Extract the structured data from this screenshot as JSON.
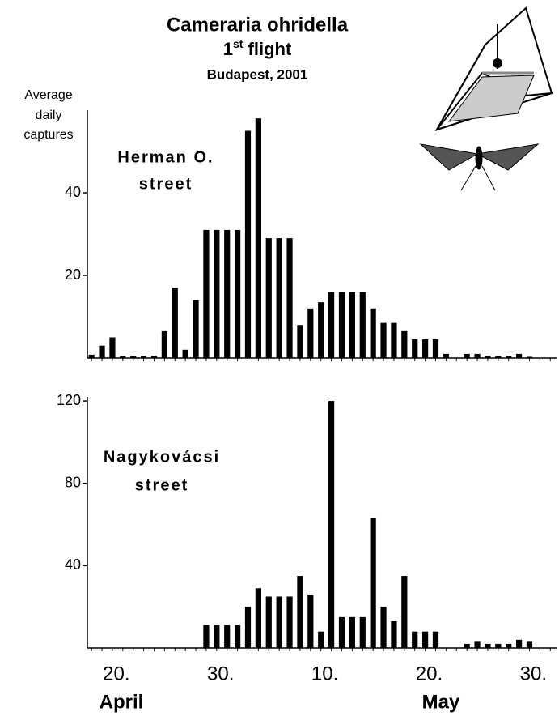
{
  "chart_data": [
    {
      "type": "bar",
      "title": "Cameraria ohridella",
      "subtitle": "1st flight",
      "location": "Budapest, 2001",
      "ylabel": [
        "Average",
        "daily",
        "captures"
      ],
      "annotation": [
        "Herman O.",
        "street"
      ],
      "color": "#000000",
      "ylim": [
        0,
        60
      ],
      "yticks": [
        20,
        40
      ],
      "values": [
        0.8,
        3,
        5,
        0.5,
        0.5,
        0.5,
        0.5,
        6.5,
        17,
        2,
        14,
        31,
        31,
        31,
        31,
        55,
        58,
        29,
        29,
        29,
        8,
        12,
        13.5,
        16,
        16,
        16,
        16,
        12,
        8.5,
        8.5,
        6.5,
        4.5,
        4.5,
        4.5,
        1,
        0,
        1,
        1,
        0.5,
        0.5,
        0.5,
        1,
        0.3,
        0,
        0
      ]
    },
    {
      "type": "bar",
      "annotation": [
        "Nagykovácsi",
        "street"
      ],
      "color": "#000000",
      "ylim": [
        0,
        122
      ],
      "yticks": [
        40,
        80,
        120
      ],
      "categories": [
        null,
        null,
        null,
        "20.",
        null,
        null,
        null,
        null,
        null,
        null,
        null,
        null,
        null,
        "30.",
        null,
        null,
        null,
        null,
        null,
        null,
        null,
        null,
        null,
        "10.",
        null,
        null,
        null,
        null,
        null,
        null,
        null,
        null,
        null,
        "20.",
        null,
        null,
        null,
        null,
        null,
        null,
        null,
        null,
        null,
        "30.",
        null
      ],
      "xlabel_groups": [
        "April",
        "May"
      ],
      "values": [
        0,
        0,
        0,
        0,
        0,
        0,
        0,
        0,
        0,
        0,
        0,
        11,
        11,
        11,
        11,
        20,
        29,
        25,
        25,
        25,
        35,
        26,
        8,
        120,
        15,
        15,
        15,
        63,
        20,
        13,
        35,
        8,
        8,
        8,
        0,
        0,
        2,
        3,
        2,
        2,
        2,
        4,
        3,
        0,
        0
      ]
    }
  ]
}
